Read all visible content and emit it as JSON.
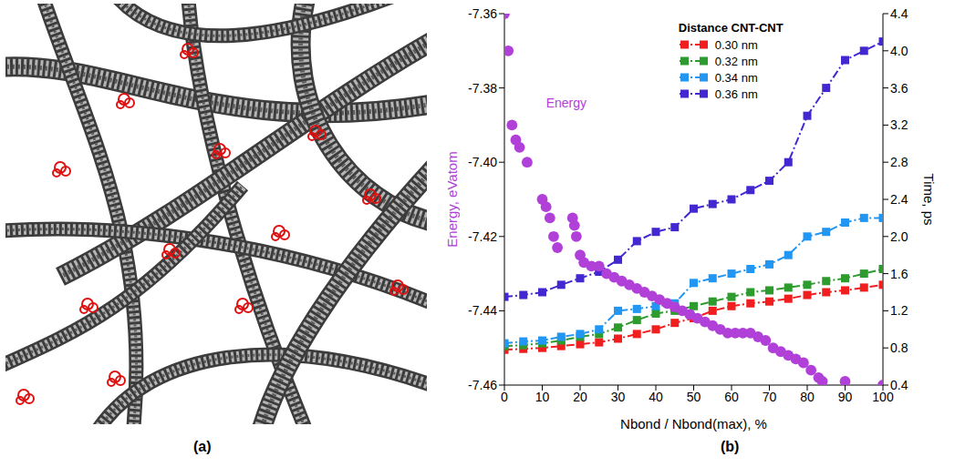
{
  "figure": {
    "panel_labels": [
      "(a)",
      "(b)"
    ]
  },
  "chart_data": {
    "type": "line",
    "xlabel": "Nbond / Nbond(max), %",
    "ylabel": "Energy, eVatom",
    "y2label": "Time, ps",
    "legend_title": "Distance CNT-CNT",
    "legend": "top",
    "grid": false,
    "xlim": [
      0,
      100
    ],
    "xticks": [
      0,
      10,
      20,
      30,
      40,
      50,
      60,
      70,
      80,
      90,
      100
    ],
    "ylim": [
      -7.46,
      -7.36
    ],
    "yticks": [
      -7.46,
      -7.44,
      -7.42,
      {
        "value": -7.4,
        "label": "-7.40"
      },
      -7.38,
      -7.36
    ],
    "y2lim": [
      0.4,
      4.4
    ],
    "y2ticks": [
      0.4,
      0.8,
      1.2,
      1.6,
      {
        "value": 2,
        "label": "2.0"
      },
      2.4,
      2.8,
      3.2,
      3.6,
      {
        "value": 4,
        "label": "4.0"
      },
      4.4
    ],
    "series": [
      {
        "name": "Energy",
        "type": "scatter",
        "marker": "circle",
        "color": "#b040d8",
        "axis": "y",
        "x": [
          0,
          1,
          2,
          3,
          4,
          6,
          10,
          11,
          12,
          13,
          14,
          18,
          18.5,
          19,
          20,
          21,
          23,
          25,
          27,
          29,
          31,
          33,
          35,
          37,
          39,
          41,
          43,
          45,
          47,
          49,
          51,
          53,
          55,
          57,
          59,
          61,
          63,
          65,
          67,
          69,
          71,
          73,
          75,
          77,
          79,
          81,
          83,
          84,
          90,
          100
        ],
        "values": [
          -7.36,
          -7.37,
          -7.39,
          -7.394,
          -7.396,
          -7.4,
          -7.41,
          -7.412,
          -7.415,
          -7.42,
          -7.423,
          -7.415,
          -7.417,
          -7.42,
          -7.425,
          -7.427,
          -7.428,
          -7.428,
          -7.43,
          -7.431,
          -7.432,
          -7.433,
          -7.434,
          -7.435,
          -7.436,
          -7.437,
          -7.438,
          -7.439,
          -7.44,
          -7.441,
          -7.442,
          -7.443,
          -7.444,
          -7.445,
          -7.446,
          -7.446,
          -7.446,
          -7.446,
          -7.447,
          -7.448,
          -7.45,
          -7.451,
          -7.452,
          -7.453,
          -7.454,
          -7.456,
          -7.458,
          -7.459,
          -7.459,
          -7.46
        ]
      },
      {
        "name": "0.30 nm",
        "type": "line",
        "marker": "square",
        "line_style": "dashdot",
        "color": "#f01e1e",
        "axis": "y2",
        "x": [
          0,
          5,
          10,
          15,
          20,
          25,
          30,
          35,
          40,
          45,
          50,
          55,
          60,
          65,
          70,
          75,
          80,
          85,
          90,
          95,
          100
        ],
        "values": [
          0.78,
          0.79,
          0.8,
          0.82,
          0.84,
          0.86,
          0.9,
          0.95,
          1.0,
          1.07,
          1.12,
          1.2,
          1.25,
          1.28,
          1.3,
          1.33,
          1.37,
          1.4,
          1.42,
          1.45,
          1.48
        ]
      },
      {
        "name": "0.32 nm",
        "type": "line",
        "marker": "square",
        "line_style": "dashdot",
        "color": "#2e9b2e",
        "axis": "y2",
        "x": [
          0,
          5,
          10,
          15,
          20,
          25,
          30,
          35,
          40,
          45,
          50,
          55,
          60,
          65,
          70,
          75,
          80,
          85,
          90,
          95,
          100
        ],
        "values": [
          0.82,
          0.83,
          0.85,
          0.88,
          0.92,
          0.95,
          1.02,
          1.1,
          1.17,
          1.2,
          1.25,
          1.3,
          1.35,
          1.4,
          1.42,
          1.45,
          1.48,
          1.52,
          1.55,
          1.6,
          1.65
        ]
      },
      {
        "name": "0.34 nm",
        "type": "line",
        "marker": "square",
        "line_style": "dashdot",
        "color": "#2196f3",
        "axis": "y2",
        "x": [
          0,
          5,
          10,
          15,
          20,
          25,
          30,
          35,
          40,
          45,
          50,
          55,
          60,
          65,
          70,
          75,
          80,
          85,
          90,
          95,
          100
        ],
        "values": [
          0.85,
          0.87,
          0.88,
          0.92,
          0.95,
          1.0,
          1.2,
          1.22,
          1.25,
          1.28,
          1.5,
          1.55,
          1.6,
          1.65,
          1.7,
          1.8,
          2.0,
          2.05,
          2.15,
          2.2,
          2.2
        ]
      },
      {
        "name": "0.36 nm",
        "type": "line",
        "marker": "square",
        "line_style": "dashdot",
        "color": "#4328d1",
        "axis": "y2",
        "x": [
          0,
          5,
          10,
          15,
          20,
          25,
          30,
          35,
          40,
          45,
          50,
          55,
          60,
          65,
          70,
          75,
          80,
          85,
          90,
          95,
          100
        ],
        "values": [
          1.35,
          1.37,
          1.4,
          1.48,
          1.55,
          1.62,
          1.75,
          1.95,
          2.05,
          2.1,
          2.3,
          2.35,
          2.4,
          2.5,
          2.6,
          2.8,
          3.3,
          3.6,
          3.9,
          4.0,
          4.1
        ]
      }
    ]
  }
}
